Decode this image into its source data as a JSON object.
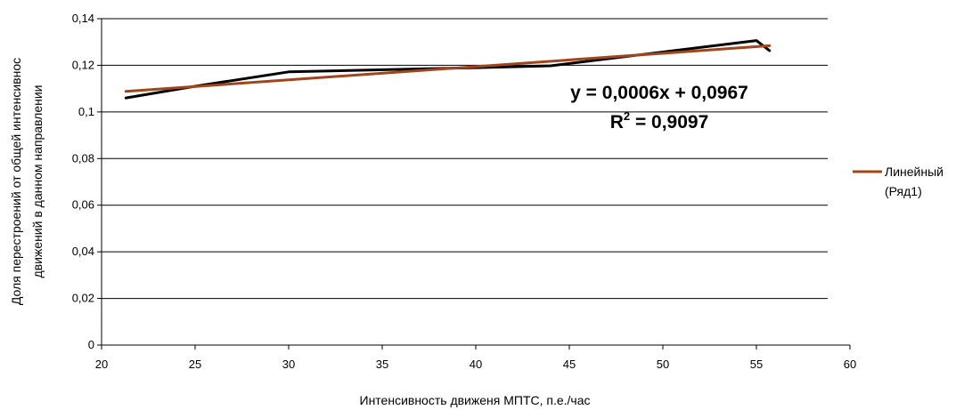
{
  "chart_data": {
    "type": "line",
    "xlabel": "Интенсивность движеня МПТС, п.е./час",
    "ylabel_line1": "Доля перестроений от общей интенсивнос",
    "ylabel_line2": "движений в данном направлении",
    "xlim": [
      20,
      60
    ],
    "ylim": [
      0,
      0.14
    ],
    "x_ticks": [
      20,
      25,
      30,
      35,
      40,
      45,
      50,
      55,
      60
    ],
    "x_tick_labels": [
      "20",
      "25",
      "30",
      "35",
      "40",
      "45",
      "50",
      "55",
      "60"
    ],
    "y_ticks": [
      0,
      0.02,
      0.04,
      0.06,
      0.08,
      0.1,
      0.12,
      0.14
    ],
    "y_tick_labels": [
      "0",
      "0,02",
      "0,04",
      "0,06",
      "0,08",
      "0,1",
      "0,12",
      "0,14"
    ],
    "grid": "horizontal",
    "series": [
      {
        "color": "#000000",
        "points": [
          [
            21.3,
            0.106
          ],
          [
            25,
            0.111
          ],
          [
            30,
            0.1172
          ],
          [
            40,
            0.119
          ],
          [
            44,
            0.1198
          ],
          [
            55,
            0.1306
          ],
          [
            55.7,
            0.1263
          ]
        ]
      },
      {
        "name": "Линейный (Ряд1)",
        "color": "#A0461C",
        "points": [
          [
            21.3,
            0.1088
          ],
          [
            55.7,
            0.1284
          ]
        ]
      }
    ],
    "annotations": {
      "equation": "y = 0,0006x + 0,0967",
      "r2_prefix": "R",
      "r2_sup": "2",
      "r2_value": " = 0,9097"
    },
    "legend": {
      "placement": "right",
      "line1": "Линейный",
      "line2": "(Ряд1)",
      "color": "#A0461C"
    }
  }
}
